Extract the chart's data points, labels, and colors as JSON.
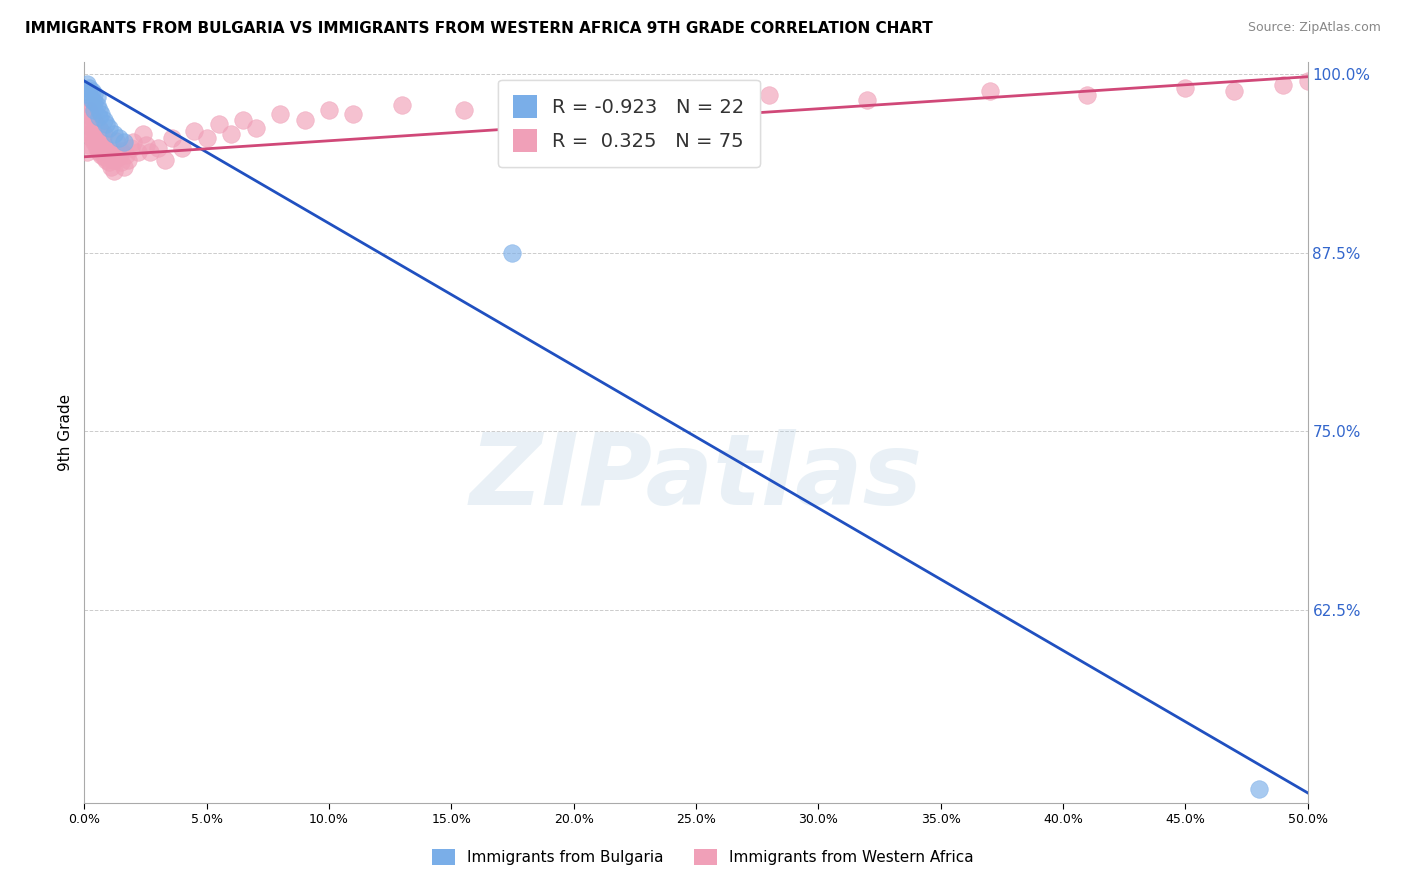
{
  "title": "IMMIGRANTS FROM BULGARIA VS IMMIGRANTS FROM WESTERN AFRICA 9TH GRADE CORRELATION CHART",
  "source_text": "Source: ZipAtlas.com",
  "ylabel": "9th Grade",
  "xmin": 0.0,
  "xmax": 0.5,
  "ymin": 0.49,
  "ymax": 1.008,
  "yticks": [
    1.0,
    0.875,
    0.75,
    0.625
  ],
  "ytick_labels": [
    "100.0%",
    "87.5%",
    "75.0%",
    "62.5%"
  ],
  "grid_color": "#cccccc",
  "background_color": "#ffffff",
  "watermark_text": "ZIPatlas",
  "watermark_color": "#b0cce0",
  "watermark_alpha": 0.28,
  "blue_color": "#7aaee8",
  "pink_color": "#f0a0b8",
  "blue_line_color": "#2050c0",
  "pink_line_color": "#d04878",
  "R_bulgaria": -0.923,
  "N_bulgaria": 22,
  "R_western_africa": 0.325,
  "N_western_africa": 75,
  "legend_label_blue": "Immigrants from Bulgaria",
  "legend_label_pink": "Immigrants from Western Africa",
  "blue_line_x0": 0.0,
  "blue_line_y0": 0.995,
  "blue_line_x1": 0.5,
  "blue_line_y1": 0.497,
  "pink_line_x0": 0.0,
  "pink_line_y0": 0.942,
  "pink_line_x1": 0.5,
  "pink_line_y1": 0.998,
  "bulgaria_x": [
    0.001,
    0.001,
    0.002,
    0.002,
    0.003,
    0.003,
    0.004,
    0.004,
    0.004,
    0.005,
    0.005,
    0.006,
    0.006,
    0.007,
    0.008,
    0.009,
    0.01,
    0.012,
    0.014,
    0.016,
    0.175,
    0.48
  ],
  "bulgaria_y": [
    0.993,
    0.988,
    0.99,
    0.985,
    0.988,
    0.982,
    0.986,
    0.98,
    0.975,
    0.984,
    0.978,
    0.975,
    0.97,
    0.972,
    0.968,
    0.965,
    0.962,
    0.958,
    0.955,
    0.952,
    0.875,
    0.5
  ],
  "western_africa_x": [
    0.001,
    0.001,
    0.001,
    0.002,
    0.002,
    0.002,
    0.002,
    0.003,
    0.003,
    0.003,
    0.003,
    0.004,
    0.004,
    0.004,
    0.005,
    0.005,
    0.005,
    0.006,
    0.006,
    0.006,
    0.007,
    0.007,
    0.007,
    0.008,
    0.008,
    0.008,
    0.009,
    0.009,
    0.01,
    0.01,
    0.011,
    0.011,
    0.012,
    0.012,
    0.013,
    0.013,
    0.014,
    0.015,
    0.015,
    0.016,
    0.017,
    0.018,
    0.019,
    0.02,
    0.022,
    0.024,
    0.025,
    0.027,
    0.03,
    0.033,
    0.036,
    0.04,
    0.045,
    0.05,
    0.055,
    0.06,
    0.065,
    0.07,
    0.08,
    0.09,
    0.1,
    0.11,
    0.13,
    0.155,
    0.18,
    0.21,
    0.24,
    0.28,
    0.32,
    0.37,
    0.41,
    0.45,
    0.47,
    0.49,
    0.5
  ],
  "western_africa_y": [
    0.945,
    0.96,
    0.972,
    0.95,
    0.958,
    0.968,
    0.975,
    0.955,
    0.963,
    0.97,
    0.978,
    0.952,
    0.96,
    0.968,
    0.948,
    0.956,
    0.964,
    0.945,
    0.953,
    0.962,
    0.943,
    0.952,
    0.96,
    0.942,
    0.95,
    0.958,
    0.94,
    0.948,
    0.938,
    0.946,
    0.935,
    0.943,
    0.932,
    0.94,
    0.945,
    0.953,
    0.942,
    0.938,
    0.946,
    0.935,
    0.943,
    0.94,
    0.948,
    0.952,
    0.945,
    0.958,
    0.95,
    0.945,
    0.948,
    0.94,
    0.955,
    0.948,
    0.96,
    0.955,
    0.965,
    0.958,
    0.968,
    0.962,
    0.972,
    0.968,
    0.975,
    0.972,
    0.978,
    0.975,
    0.98,
    0.982,
    0.978,
    0.985,
    0.982,
    0.988,
    0.985,
    0.99,
    0.988,
    0.992,
    0.995
  ]
}
